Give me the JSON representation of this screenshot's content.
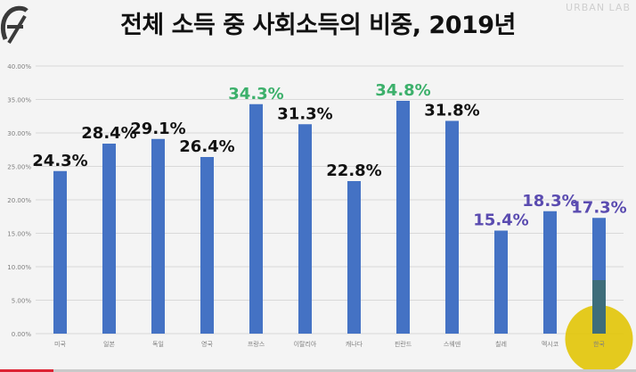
{
  "title": "전체 소득 중 사회소득의 비중, 2019년",
  "watermark": "URBAN LAB",
  "colors": {
    "bar": "#4472c4",
    "bar_highlight": "#2e4a86",
    "label_default": "#111111",
    "label_green": "#3cb06b",
    "label_purple": "#5a4bb0",
    "highlight_circle": "#e1c400",
    "grid": "#d9d9d9",
    "axis_text": "#7f7f7f"
  },
  "chart_data": {
    "type": "bar",
    "categories": [
      "미국",
      "일본",
      "독일",
      "영국",
      "프랑스",
      "이탈리아",
      "캐나다",
      "핀란드",
      "스웨덴",
      "칠레",
      "멕시코",
      "한국"
    ],
    "values": [
      24.3,
      28.4,
      29.1,
      26.4,
      34.3,
      31.3,
      22.8,
      34.8,
      31.8,
      15.4,
      18.3,
      17.3
    ],
    "data_labels": [
      "24.3%",
      "28.4%",
      "29.1%",
      "26.4%",
      "34.3%",
      "31.3%",
      "22.8%",
      "34.8%",
      "31.8%",
      "15.4%",
      "18.3%",
      "17.3%"
    ],
    "label_colors": [
      "default",
      "default",
      "default",
      "default",
      "green",
      "default",
      "default",
      "green",
      "default",
      "purple",
      "purple",
      "purple"
    ],
    "yticks": [
      "0.00%",
      "5.00%",
      "10.00%",
      "15.00%",
      "20.00%",
      "25.00%",
      "30.00%",
      "35.00%",
      "40.00%"
    ],
    "ylim": [
      0,
      40
    ],
    "grid": true,
    "highlight_category": "한국",
    "title": "전체 소득 중 사회소득의 비중, 2019년",
    "xlabel": "",
    "ylabel": ""
  }
}
